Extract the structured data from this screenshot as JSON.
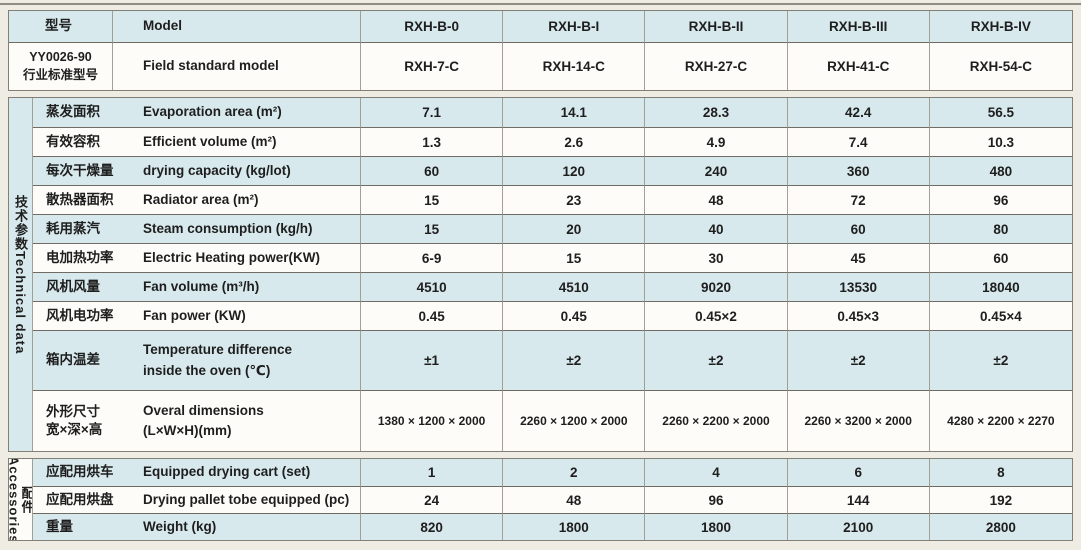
{
  "colors": {
    "page_bg": "#efece3",
    "row_blue": "#d8e9ed",
    "row_white": "#fdfcf8",
    "line_dark": "#6e6c65",
    "line_light": "#a29f97",
    "frame": "#817f76",
    "text": "#1e1e1e"
  },
  "table": {
    "header_block": {
      "rows": [
        {
          "zh": "型号",
          "en": "Model",
          "values": [
            "RXH-B-0",
            "RXH-B-I",
            "RXH-B-II",
            "RXH-B-III",
            "RXH-B-IV"
          ]
        },
        {
          "zh": "YY0026-90\n行业标准型号",
          "en": "Field standard model",
          "values": [
            "RXH-7-C",
            "RXH-14-C",
            "RXH-27-C",
            "RXH-41-C",
            "RXH-54-C"
          ]
        }
      ]
    },
    "tech_block": {
      "group_zh": "技术参数",
      "group_en": "Technical data",
      "rows": [
        {
          "zh": "蒸发面积",
          "en": "Evaporation area (m²)",
          "values": [
            "7.1",
            "14.1",
            "28.3",
            "42.4",
            "56.5"
          ]
        },
        {
          "zh": "有效容积",
          "en": "Efficient volume (m²)",
          "values": [
            "1.3",
            "2.6",
            "4.9",
            "7.4",
            "10.3"
          ]
        },
        {
          "zh": "每次干燥量",
          "en": "drying capacity (kg/lot)",
          "values": [
            "60",
            "120",
            "240",
            "360",
            "480"
          ]
        },
        {
          "zh": "散热器面积",
          "en": "Radiator area (m²)",
          "values": [
            "15",
            "23",
            "48",
            "72",
            "96"
          ]
        },
        {
          "zh": "耗用蒸汽",
          "en": "Steam consumption (kg/h)",
          "values": [
            "15",
            "20",
            "40",
            "60",
            "80"
          ]
        },
        {
          "zh": "电加热功率",
          "en": "Electric Heating power(KW)",
          "values": [
            "6-9",
            "15",
            "30",
            "45",
            "60"
          ]
        },
        {
          "zh": "风机风量",
          "en": "Fan volume (m³/h)",
          "values": [
            "4510",
            "4510",
            "9020",
            "13530",
            "18040"
          ]
        },
        {
          "zh": "风机电功率",
          "en": "Fan power (KW)",
          "values": [
            "0.45",
            "0.45",
            "0.45×2",
            "0.45×3",
            "0.45×4"
          ]
        },
        {
          "zh": "箱内温差",
          "en": "Temperature difference\ninside the oven (℃)",
          "values": [
            "±1",
            "±2",
            "±2",
            "±2",
            "±2"
          ]
        },
        {
          "zh": "外形尺寸\n宽×深×高",
          "en": "Overal dimensions\n(L×W×H)(mm)",
          "values": [
            "1380 × 1200 × 2000",
            "2260 × 1200 × 2000",
            "2260 × 2200 × 2000",
            "2260 × 3200 × 2000",
            "4280 × 2200 × 2270"
          ]
        }
      ]
    },
    "acc_block": {
      "group_zh": "配件",
      "group_en": "Accessories",
      "rows": [
        {
          "zh": "应配用烘车",
          "en": "Equipped drying cart (set)",
          "values": [
            "1",
            "2",
            "4",
            "6",
            "8"
          ]
        },
        {
          "zh": "应配用烘盘",
          "en": "Drying pallet tobe equipped (pc)",
          "values": [
            "24",
            "48",
            "96",
            "144",
            "192"
          ]
        },
        {
          "zh": "重量",
          "en": "Weight (kg)",
          "values": [
            "820",
            "1800",
            "1800",
            "2100",
            "2800"
          ]
        }
      ]
    }
  }
}
